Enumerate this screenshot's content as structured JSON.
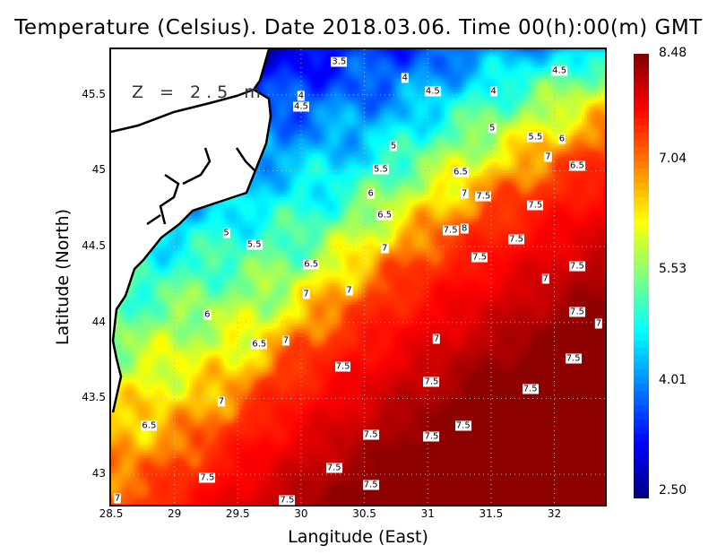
{
  "chart_data": {
    "type": "heatmap",
    "title": "Temperature (Celsius). Date 2018.03.06. Time 00(h):00(m)  GMT",
    "xlabel": "Langitude (East)",
    "ylabel": "Latitude (North)",
    "annotation": "Z = 2.5 m",
    "xlim": [
      28.5,
      32.4
    ],
    "ylim": [
      42.8,
      45.8
    ],
    "xticks": [
      "28.5",
      "29",
      "29.5",
      "30",
      "30.5",
      "31",
      "31.5",
      "32"
    ],
    "xtick_values": [
      28.5,
      29,
      29.5,
      30,
      30.5,
      31,
      31.5,
      32
    ],
    "yticks": [
      "43",
      "43.5",
      "44",
      "44.5",
      "45",
      "45.5"
    ],
    "ytick_values": [
      43,
      43.5,
      44,
      44.5,
      45,
      45.5
    ],
    "colorbar": {
      "min": 2.5,
      "max": 8.48,
      "ticks": [
        "2.50",
        "4.01",
        "5.53",
        "7.04",
        "8.48"
      ],
      "tick_values": [
        2.5,
        4.01,
        5.53,
        7.04,
        8.48
      ],
      "colormap": "jet"
    },
    "grid": true,
    "contour_labels": [
      {
        "t": "3.5",
        "lon": 30.3,
        "lat": 45.72
      },
      {
        "t": "4",
        "lon": 30.82,
        "lat": 45.61
      },
      {
        "t": "4.5",
        "lon": 32.04,
        "lat": 45.66
      },
      {
        "t": "4",
        "lon": 30.0,
        "lat": 45.49
      },
      {
        "t": "4.5",
        "lon": 30.0,
        "lat": 45.42
      },
      {
        "t": "4.5",
        "lon": 31.04,
        "lat": 45.52
      },
      {
        "t": "4",
        "lon": 31.52,
        "lat": 45.52
      },
      {
        "t": "5",
        "lon": 31.51,
        "lat": 45.28
      },
      {
        "t": "5.5",
        "lon": 31.85,
        "lat": 45.22
      },
      {
        "t": "6",
        "lon": 32.06,
        "lat": 45.21
      },
      {
        "t": "7",
        "lon": 31.95,
        "lat": 45.09
      },
      {
        "t": "6.5",
        "lon": 32.18,
        "lat": 45.03
      },
      {
        "t": "5",
        "lon": 30.73,
        "lat": 45.16
      },
      {
        "t": "5.5",
        "lon": 30.63,
        "lat": 45.01
      },
      {
        "t": "6.5",
        "lon": 31.26,
        "lat": 44.99
      },
      {
        "t": "6",
        "lon": 30.55,
        "lat": 44.85
      },
      {
        "t": "7",
        "lon": 31.29,
        "lat": 44.85
      },
      {
        "t": "7.5",
        "lon": 31.44,
        "lat": 44.83
      },
      {
        "t": "7.5",
        "lon": 31.85,
        "lat": 44.77
      },
      {
        "t": "6.5",
        "lon": 30.66,
        "lat": 44.71
      },
      {
        "t": "5",
        "lon": 29.41,
        "lat": 44.59
      },
      {
        "t": "5.5",
        "lon": 29.63,
        "lat": 44.51
      },
      {
        "t": "7",
        "lon": 30.66,
        "lat": 44.49
      },
      {
        "t": "7.5",
        "lon": 31.18,
        "lat": 44.61
      },
      {
        "t": "8",
        "lon": 31.29,
        "lat": 44.62
      },
      {
        "t": "7.5",
        "lon": 31.7,
        "lat": 44.55
      },
      {
        "t": "7.5",
        "lon": 31.41,
        "lat": 44.43
      },
      {
        "t": "7.5",
        "lon": 32.18,
        "lat": 44.37
      },
      {
        "t": "6.5",
        "lon": 30.08,
        "lat": 44.38
      },
      {
        "t": "7",
        "lon": 30.38,
        "lat": 44.21
      },
      {
        "t": "7",
        "lon": 30.04,
        "lat": 44.19
      },
      {
        "t": "7",
        "lon": 31.93,
        "lat": 44.29
      },
      {
        "t": "6",
        "lon": 29.26,
        "lat": 44.05
      },
      {
        "t": "7.5",
        "lon": 32.18,
        "lat": 44.07
      },
      {
        "t": "7",
        "lon": 32.35,
        "lat": 43.99
      },
      {
        "t": "6.5",
        "lon": 29.67,
        "lat": 43.86
      },
      {
        "t": "7",
        "lon": 29.88,
        "lat": 43.88
      },
      {
        "t": "7",
        "lon": 31.07,
        "lat": 43.89
      },
      {
        "t": "7.5",
        "lon": 30.33,
        "lat": 43.71
      },
      {
        "t": "7.5",
        "lon": 32.15,
        "lat": 43.76
      },
      {
        "t": "7.5",
        "lon": 31.03,
        "lat": 43.61
      },
      {
        "t": "7.5",
        "lon": 31.81,
        "lat": 43.56
      },
      {
        "t": "7",
        "lon": 29.37,
        "lat": 43.48
      },
      {
        "t": "6.5",
        "lon": 28.8,
        "lat": 43.32
      },
      {
        "t": "7.5",
        "lon": 31.28,
        "lat": 43.32
      },
      {
        "t": "7.5",
        "lon": 30.55,
        "lat": 43.26
      },
      {
        "t": "7.5",
        "lon": 31.03,
        "lat": 43.25
      },
      {
        "t": "7.5",
        "lon": 30.26,
        "lat": 43.04
      },
      {
        "t": "7.5",
        "lon": 29.26,
        "lat": 42.98
      },
      {
        "t": "7.5",
        "lon": 30.55,
        "lat": 42.93
      },
      {
        "t": "7",
        "lon": 28.55,
        "lat": 42.84
      },
      {
        "t": "7.5",
        "lon": 29.89,
        "lat": 42.83
      }
    ]
  }
}
